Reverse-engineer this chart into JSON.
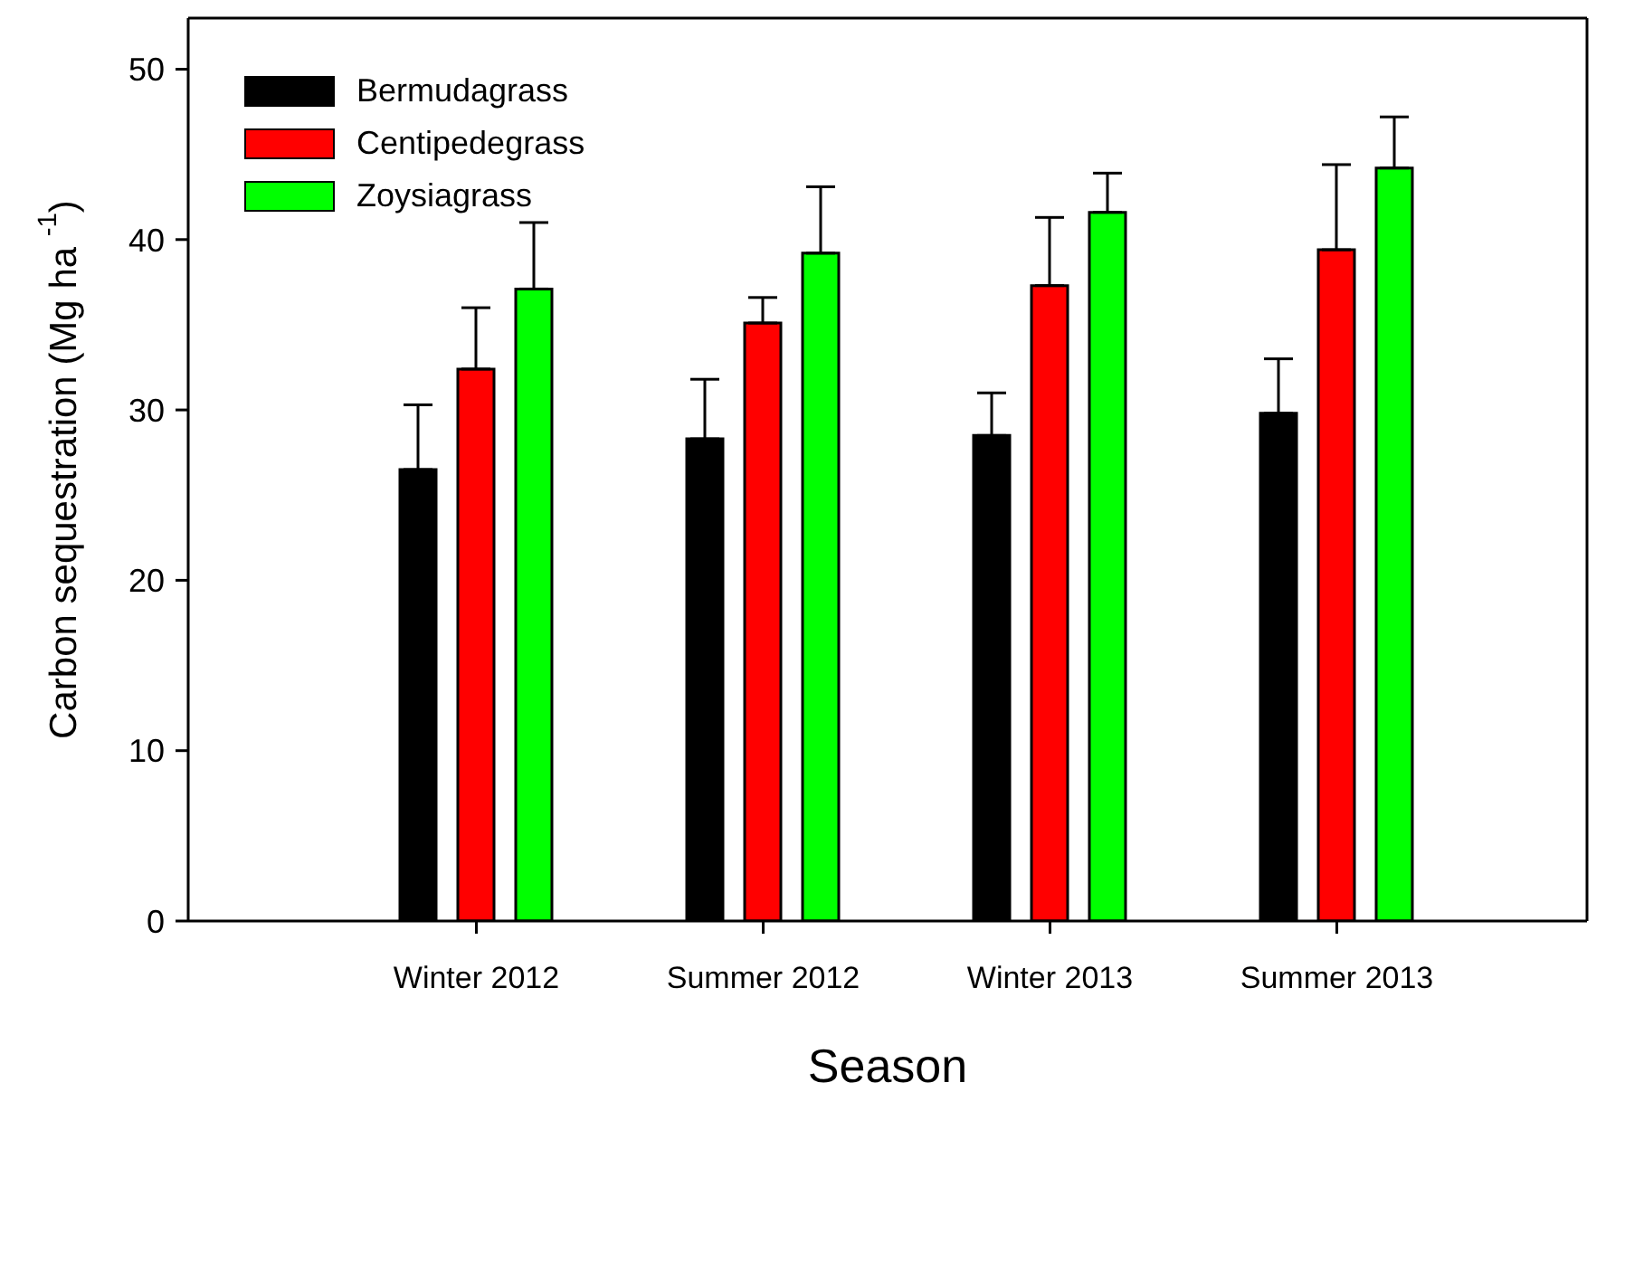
{
  "chart_data": {
    "type": "bar",
    "xlabel": "Season",
    "ylabel": "Carbon sequestration (Mg ha $^{-1}$)",
    "categories": [
      "Winter 2012",
      "Summer 2012",
      "Winter 2013",
      "Summer 2013"
    ],
    "series": [
      {
        "name": "Bermudagrass",
        "color": "#000000",
        "values": [
          26.5,
          28.3,
          28.5,
          29.8
        ],
        "errors": [
          [
            26.5,
            30.3
          ],
          [
            28.3,
            31.8
          ],
          [
            28.5,
            31.0
          ],
          [
            29.8,
            33.0
          ]
        ]
      },
      {
        "name": "Centipedegrass",
        "color": "#ff0000",
        "values": [
          32.4,
          35.1,
          37.3,
          39.4
        ],
        "errors": [
          [
            32.4,
            36.0
          ],
          [
            35.1,
            36.6
          ],
          [
            37.3,
            41.3
          ],
          [
            39.4,
            44.4
          ]
        ]
      },
      {
        "name": "Zoysiagrass",
        "color": "#00ff00",
        "values": [
          37.1,
          39.2,
          41.6,
          44.2
        ],
        "errors": [
          [
            37.1,
            41.0
          ],
          [
            39.2,
            43.1
          ],
          [
            41.6,
            43.9
          ],
          [
            44.2,
            47.2
          ]
        ]
      }
    ],
    "ylim": [
      0,
      53
    ],
    "yticks": [
      0,
      10,
      20,
      30,
      40,
      50
    ],
    "legend": "top left"
  }
}
